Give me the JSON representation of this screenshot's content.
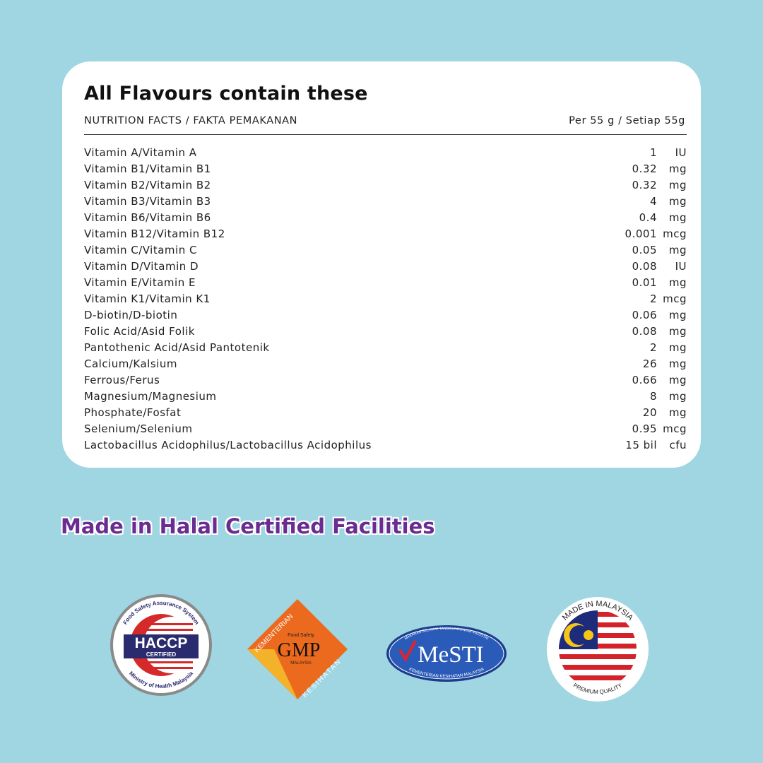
{
  "card": {
    "title": "All Flavours contain these",
    "header_left": "NUTRITION FACTS / FAKTA PEMAKANAN",
    "header_right": "Per 55 g / Setiap 55g",
    "rows": [
      {
        "label": "Vitamin A/Vitamin A",
        "value": "1",
        "unit": "IU"
      },
      {
        "label": "Vitamin B1/Vitamin B1",
        "value": "0.32",
        "unit": "mg"
      },
      {
        "label": "Vitamin B2/Vitamin B2",
        "value": "0.32",
        "unit": "mg"
      },
      {
        "label": "Vitamin B3/Vitamin B3",
        "value": "4",
        "unit": "mg"
      },
      {
        "label": "Vitamin B6/Vitamin B6",
        "value": "0.4",
        "unit": "mg"
      },
      {
        "label": "Vitamin B12/Vitamin B12",
        "value": "0.001",
        "unit": "mcg"
      },
      {
        "label": "Vitamin C/Vitamin C",
        "value": "0.05",
        "unit": "mg"
      },
      {
        "label": "Vitamin D/Vitamin D",
        "value": "0.08",
        "unit": "IU"
      },
      {
        "label": "Vitamin E/Vitamin E",
        "value": "0.01",
        "unit": "mg"
      },
      {
        "label": "Vitamin K1/Vitamin K1",
        "value": "2",
        "unit": "mcg"
      },
      {
        "label": "D-biotin/D-biotin",
        "value": "0.06",
        "unit": "mg"
      },
      {
        "label": "Folic Acid/Asid Folik",
        "value": "0.08",
        "unit": "mg"
      },
      {
        "label": "Pantothenic Acid/Asid Pantotenik",
        "value": "2",
        "unit": "mg"
      },
      {
        "label": "Calcium/Kalsium",
        "value": "26",
        "unit": "mg"
      },
      {
        "label": "Ferrous/Ferus",
        "value": "0.66",
        "unit": "mg"
      },
      {
        "label": "Magnesium/Magnesium",
        "value": "8",
        "unit": "mg"
      },
      {
        "label": "Phosphate/Fosfat",
        "value": "20",
        "unit": "mg"
      },
      {
        "label": "Selenium/Selenium",
        "value": "0.95",
        "unit": "mcg"
      },
      {
        "label": "Lactobacillus Acidophilus/Lactobacillus Acidophilus",
        "value": "15 bil",
        "unit": "cfu"
      }
    ]
  },
  "halal_text": "Made in Halal Certified  Facilities",
  "logos": {
    "haccp": {
      "top": "Food Safety Assurance System",
      "main": "HACCP",
      "sub": "CERTIFIED",
      "bottom": "Ministry of Health Malaysia"
    },
    "gmp": {
      "left": "KEMENTERIAN",
      "small": "Food Safety",
      "main": "GMP",
      "sub": "MALAYSIA",
      "right": "KESIHATAN"
    },
    "mesti": {
      "top": "MAKANAN SELAMAT TANGGUNGJAWAB INDUSTRI",
      "main": "MeSTI",
      "bottom": "KEMENTERIAN KESIHATAN MALAYSIA"
    },
    "malaysia": {
      "top": "MADE IN MALAYSIA",
      "bottom": "PREMIUM QUALITY"
    }
  },
  "colors": {
    "background": "#9fd6e2",
    "halal_purple": "#6a2c91"
  }
}
